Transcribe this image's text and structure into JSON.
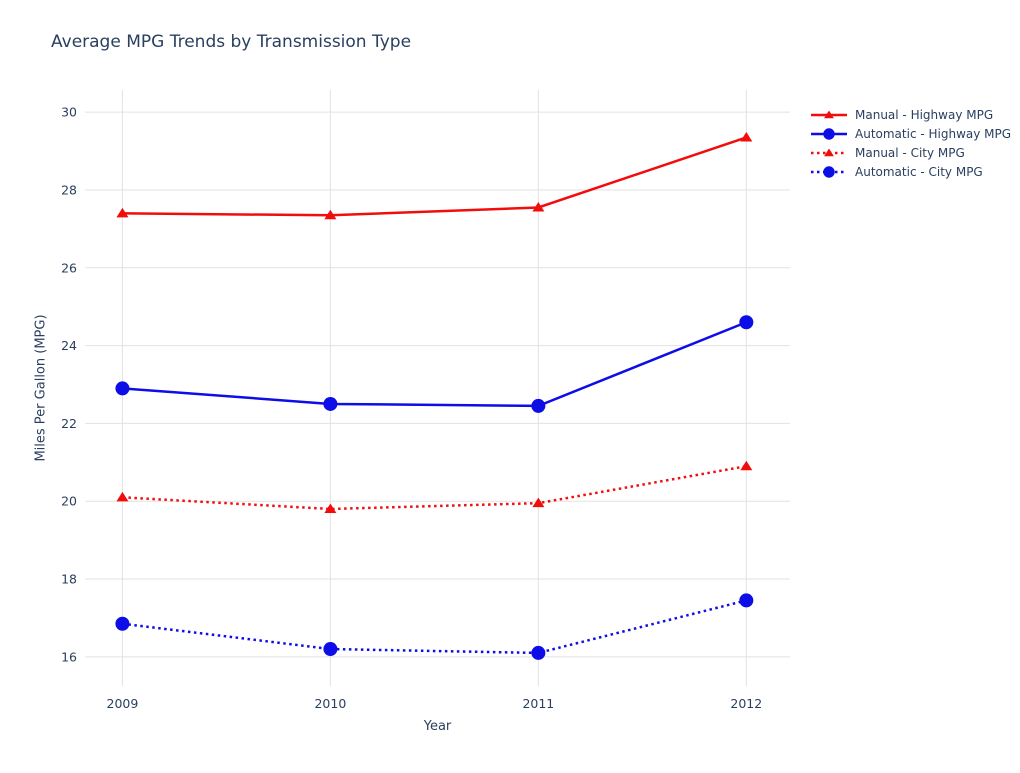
{
  "chart_data": {
    "type": "line",
    "title": "Average MPG Trends by Transmission Type",
    "xlabel": "Year",
    "ylabel": "Miles Per Gallon (MPG)",
    "x": [
      2009,
      2010,
      2011,
      2012
    ],
    "x_tick_labels": [
      "2009",
      "2010",
      "2011",
      "2012"
    ],
    "y_ticks": [
      16,
      18,
      20,
      22,
      24,
      26,
      28,
      30
    ],
    "xlim": [
      2008.82,
      2012.21
    ],
    "ylim": [
      15.25,
      30.57
    ],
    "grid": true,
    "legend_position": "top-right",
    "text_color": "#2a3f5f",
    "grid_color": "#e2e2e2",
    "series": [
      {
        "name": "Manual - Highway MPG",
        "color": "#f20d0d",
        "line_style": "solid",
        "marker": "triangle-up",
        "values": [
          27.4,
          27.35,
          27.55,
          29.35
        ]
      },
      {
        "name": "Automatic - Highway MPG",
        "color": "#0d0de8",
        "line_style": "solid",
        "marker": "circle",
        "values": [
          22.9,
          22.5,
          22.45,
          24.6
        ]
      },
      {
        "name": "Manual - City MPG",
        "color": "#f20d0d",
        "line_style": "dotted",
        "marker": "triangle-up",
        "values": [
          20.1,
          19.8,
          19.95,
          20.9
        ]
      },
      {
        "name": "Automatic - City MPG",
        "color": "#0d0de8",
        "line_style": "dotted",
        "marker": "circle",
        "values": [
          16.85,
          16.2,
          16.1,
          17.45
        ]
      }
    ]
  }
}
